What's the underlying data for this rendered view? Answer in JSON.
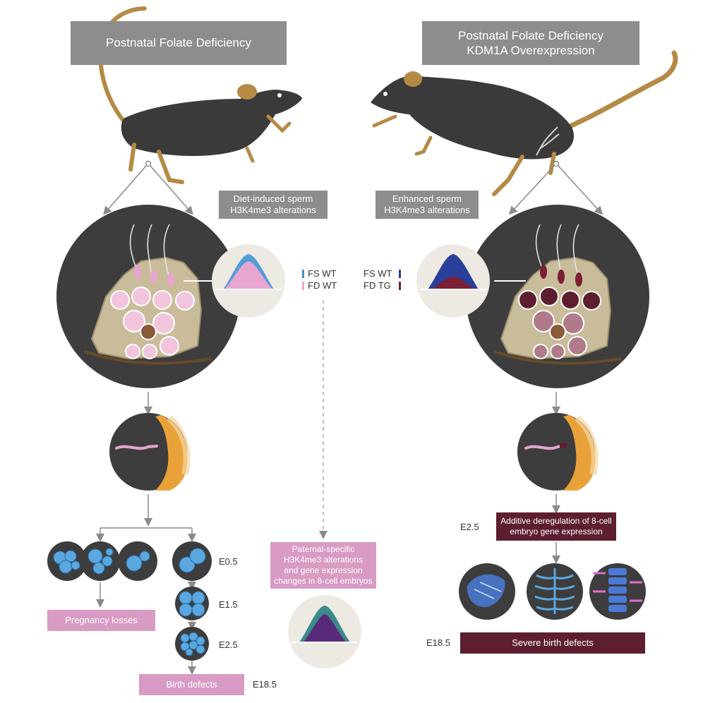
{
  "left_header": "Postnatal Folate Deficiency",
  "right_header": [
    "Postnatal Folate Deficiency",
    "KDM1A Overexpression"
  ],
  "left_note": [
    "Diet-induced sperm",
    "H3K4me3 alterations"
  ],
  "right_note": [
    "Enhanced sperm",
    "H3K4me3 alterations"
  ],
  "legend_left": [
    {
      "label": "FS WT",
      "color": "#3a8fd6"
    },
    {
      "label": "FD WT",
      "color": "#e6a6d0"
    }
  ],
  "legend_right": [
    {
      "label": "FS WT",
      "color": "#2a3f9a"
    },
    {
      "label": "FD TG",
      "color": "#7a1f35"
    }
  ],
  "center_box": [
    "Paternal-specific",
    "H3K4me3 alterations",
    "and gene expression",
    "changes in 8-cell embryos"
  ],
  "pregnancy_losses": "Pregnancy losses",
  "birth_defects": "Birth defects",
  "severe_birth_defects": "Severe birth defects",
  "right_deregulation": [
    "Additive deregulation of 8-cell",
    "embryo gene expression"
  ],
  "stages": {
    "e05": "E0.5",
    "e15": "E1.5",
    "e25_left": "E2.5",
    "e185_left": "E18.5",
    "e25_right": "E2.5",
    "e185_right": "E18.5"
  },
  "colors": {
    "header_gray": "#8d8d8d",
    "pink": "#d89bc4",
    "maroon": "#5d1f2f",
    "mouse_body": "#3a3a3a",
    "mouse_tan": "#b58a45",
    "circle_dark": "#3d3d3d",
    "cell_blue": "#5ba7e0"
  }
}
